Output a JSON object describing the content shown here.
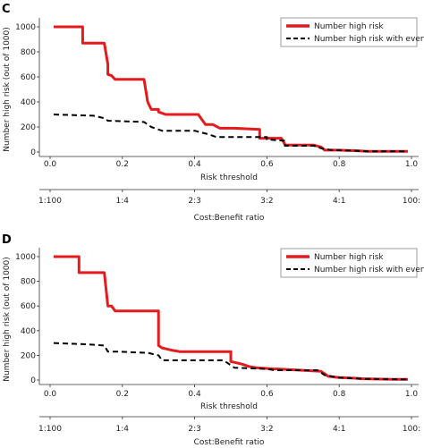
{
  "chart_data": [
    {
      "type": "line",
      "panel_label": "C",
      "xlabel": "Risk threshold",
      "ylabel": "Number high risk (out of 1000)",
      "xlim": [
        0,
        1
      ],
      "ylim": [
        0,
        1000
      ],
      "x_ticks": [
        "0.0",
        "0.2",
        "0.4",
        "0.6",
        "0.8",
        "1.0"
      ],
      "y_ticks": [
        "0",
        "200",
        "400",
        "600",
        "800",
        "1000"
      ],
      "cost_benefit_label": "Cost:Benefit ratio",
      "cost_benefit_ticks": [
        "1:100",
        "1:4",
        "2:3",
        "3:2",
        "4:1",
        "100:"
      ],
      "legend_position": "top-right",
      "series": [
        {
          "name": "Number high risk",
          "color": "#e41a1c",
          "style": "solid",
          "x": [
            0.01,
            0.09,
            0.09,
            0.15,
            0.16,
            0.16,
            0.17,
            0.18,
            0.26,
            0.27,
            0.28,
            0.3,
            0.3,
            0.32,
            0.41,
            0.43,
            0.45,
            0.47,
            0.51,
            0.58,
            0.58,
            0.64,
            0.65,
            0.65,
            0.73,
            0.75,
            0.76,
            0.8,
            0.85,
            0.88,
            0.99
          ],
          "y": [
            1000,
            1000,
            870,
            870,
            700,
            620,
            610,
            580,
            580,
            400,
            340,
            340,
            320,
            300,
            300,
            220,
            220,
            190,
            190,
            180,
            110,
            110,
            60,
            55,
            55,
            40,
            15,
            15,
            10,
            5,
            5
          ]
        },
        {
          "name": "Number high risk with event",
          "color": "#000000",
          "style": "dashed",
          "x": [
            0.01,
            0.12,
            0.15,
            0.16,
            0.26,
            0.27,
            0.28,
            0.3,
            0.31,
            0.4,
            0.44,
            0.46,
            0.6,
            0.6,
            0.65,
            0.65,
            0.73,
            0.75,
            0.78,
            0.85,
            0.88,
            0.99
          ],
          "y": [
            300,
            290,
            270,
            250,
            240,
            220,
            200,
            180,
            170,
            170,
            140,
            120,
            120,
            100,
            90,
            50,
            50,
            30,
            15,
            10,
            5,
            5
          ]
        }
      ]
    },
    {
      "type": "line",
      "panel_label": "D",
      "xlabel": "Risk threshold",
      "ylabel": "Number high risk (out of 1000)",
      "xlim": [
        0,
        1
      ],
      "ylim": [
        0,
        1000
      ],
      "x_ticks": [
        "0.0",
        "0.2",
        "0.4",
        "0.6",
        "0.8",
        "1.0"
      ],
      "y_ticks": [
        "0",
        "200",
        "400",
        "600",
        "800",
        "1000"
      ],
      "cost_benefit_label": "Cost:Benefit ratio",
      "cost_benefit_ticks": [
        "1:100",
        "1:4",
        "2:3",
        "3:2",
        "4:1",
        "100:"
      ],
      "legend_position": "top-right",
      "series": [
        {
          "name": "Number high risk",
          "color": "#e41a1c",
          "style": "solid",
          "x": [
            0.01,
            0.08,
            0.08,
            0.15,
            0.16,
            0.17,
            0.18,
            0.2,
            0.3,
            0.3,
            0.31,
            0.34,
            0.36,
            0.5,
            0.5,
            0.53,
            0.55,
            0.57,
            0.62,
            0.63,
            0.75,
            0.77,
            0.8,
            0.84,
            0.87,
            0.95,
            0.99
          ],
          "y": [
            1000,
            1000,
            870,
            870,
            600,
            600,
            560,
            560,
            560,
            280,
            260,
            240,
            230,
            230,
            150,
            130,
            110,
            100,
            90,
            90,
            70,
            30,
            20,
            15,
            10,
            5,
            5
          ]
        },
        {
          "name": "Number high risk with event",
          "color": "#000000",
          "style": "dashed",
          "x": [
            0.01,
            0.1,
            0.15,
            0.16,
            0.19,
            0.27,
            0.3,
            0.31,
            0.48,
            0.5,
            0.51,
            0.6,
            0.62,
            0.74,
            0.76,
            0.8,
            0.86,
            0.99
          ],
          "y": [
            300,
            290,
            280,
            230,
            230,
            220,
            200,
            160,
            160,
            120,
            100,
            90,
            80,
            80,
            40,
            20,
            10,
            5
          ]
        }
      ]
    }
  ]
}
